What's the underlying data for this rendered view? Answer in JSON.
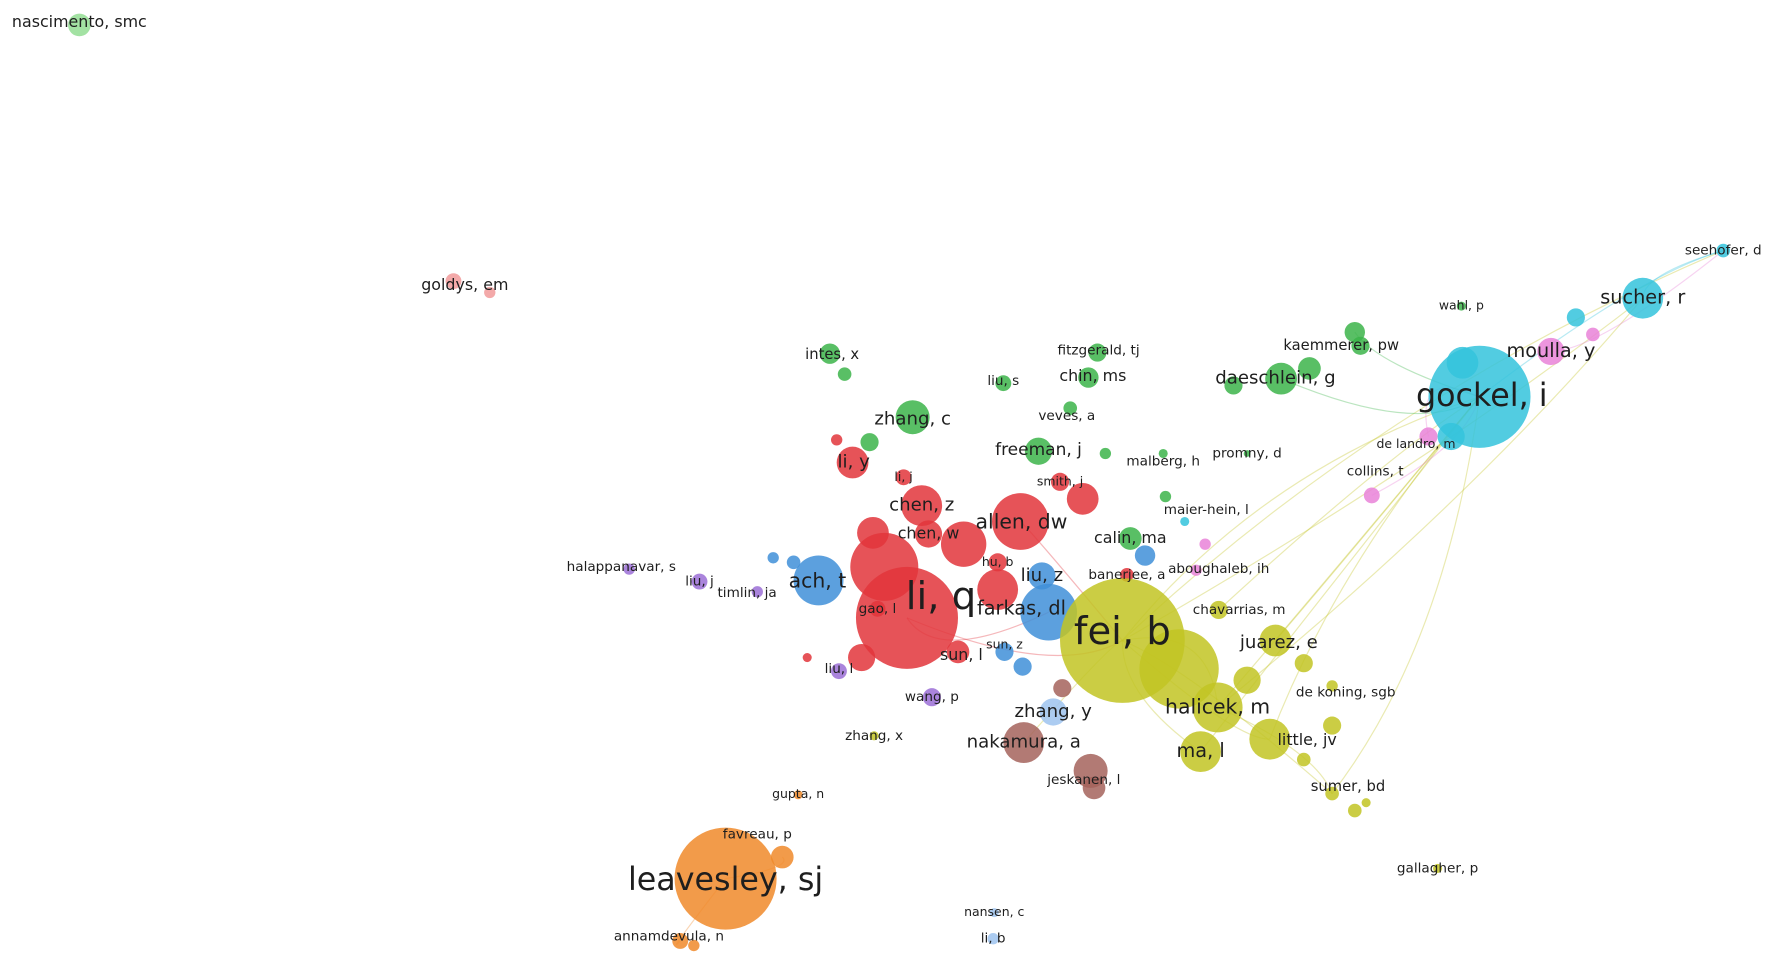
{
  "nodes": [
    {
      "label": "nascimento, smc",
      "color": "#93dd93"
    },
    {
      "label": "goldys, em",
      "color": "#f19a9a"
    },
    {
      "label": "intes, x",
      "color": "#3cb44a"
    },
    {
      "label": "liu, s",
      "color": "#3cb44a"
    },
    {
      "label": "fitzgerald, tj",
      "color": "#3cb44a"
    },
    {
      "label": "chin, ms",
      "color": "#3cb44a"
    },
    {
      "label": "zhang, c",
      "color": "#3cb44a"
    },
    {
      "label": "veves, a",
      "color": "#3cb44a"
    },
    {
      "label": "freeman, j",
      "color": "#3cb44a"
    },
    {
      "label": "malberg, h",
      "color": "#3cb44a"
    },
    {
      "label": "promny, d",
      "color": "#3cb44a"
    },
    {
      "label": "li, y",
      "color": "#e2353b"
    },
    {
      "label": "li, j",
      "color": "#e2353b"
    },
    {
      "label": "smith, j",
      "color": "#e2353b"
    },
    {
      "label": "chen, z",
      "color": "#e2353b"
    },
    {
      "label": "allen, dw",
      "color": "#e2353b"
    },
    {
      "label": "chen, w",
      "color": "#e2353b"
    },
    {
      "label": "calin, ma",
      "color": "#3cb44a"
    },
    {
      "label": "maier-hein, l",
      "color": "#34c3dc"
    },
    {
      "label": "hu, b",
      "color": "#e2353b"
    },
    {
      "label": "halappanavar, s",
      "color": "#9b6fd6"
    },
    {
      "label": "liu, z",
      "color": "#3f8fd8"
    },
    {
      "label": "banerjee, a",
      "color": "#e2353b"
    },
    {
      "label": "aboughaleb, ih",
      "color": "#e982d8"
    },
    {
      "label": "ach, t",
      "color": "#3f8fd8"
    },
    {
      "label": "liu, j",
      "color": "#9b6fd6"
    },
    {
      "label": "timlin, ja",
      "color": "#9b6fd6"
    },
    {
      "label": "li, q",
      "color": "#e2353b"
    },
    {
      "label": "farkas, dl",
      "color": "#3f8fd8"
    },
    {
      "label": "gao, l",
      "color": "#e2353b"
    },
    {
      "label": "chavarrias, m",
      "color": "#c2c423"
    },
    {
      "label": "fei, b",
      "color": "#c2c423"
    },
    {
      "label": "juarez, e",
      "color": "#c2c423"
    },
    {
      "label": "sun, z",
      "color": "#3f8fd8"
    },
    {
      "label": "sun, l",
      "color": "#e2353b"
    },
    {
      "label": "liu, l",
      "color": "#9b6fd6"
    },
    {
      "label": "de koning, sgb",
      "color": "#c2c423"
    },
    {
      "label": "wang, p",
      "color": "#9b6fd6"
    },
    {
      "label": "zhang, y",
      "color": "#9dc3ef"
    },
    {
      "label": "halicek, m",
      "color": "#c2c423"
    },
    {
      "label": "zhang, x",
      "color": "#c2c423"
    },
    {
      "label": "nakamura, a",
      "color": "#a4635c"
    },
    {
      "label": "little, jv",
      "color": "#c2c423"
    },
    {
      "label": "ma, l",
      "color": "#c2c423"
    },
    {
      "label": "jeskanen, l",
      "color": "#a4635c"
    },
    {
      "label": "sumer, bd",
      "color": "#c2c423"
    },
    {
      "label": "gupta, n",
      "color": "#f0892a"
    },
    {
      "label": "favreau, p",
      "color": "#f0892a"
    },
    {
      "label": "leavesley, sj",
      "color": "#f0892a"
    },
    {
      "label": "gallagher, p",
      "color": "#c2c423"
    },
    {
      "label": "nansen, c",
      "color": "#9dc3ef"
    },
    {
      "label": "annamdevula, n",
      "color": "#f0892a"
    },
    {
      "label": "li, b",
      "color": "#9dc3ef"
    },
    {
      "label": "seehofer, d",
      "color": "#34c3dc"
    },
    {
      "label": "wahl, p",
      "color": "#3cb44a"
    },
    {
      "label": "sucher, r",
      "color": "#34c3dc"
    },
    {
      "label": "kaemmerer, pw",
      "color": "#3cb44a"
    },
    {
      "label": "moulla, y",
      "color": "#e982d8"
    },
    {
      "label": "daeschlein, g",
      "color": "#3cb44a"
    },
    {
      "label": "gockel, i",
      "color": "#34c3dc"
    },
    {
      "label": "de landro, m",
      "color": "#e982d8"
    },
    {
      "label": "collins, t",
      "color": "#e982d8"
    }
  ]
}
